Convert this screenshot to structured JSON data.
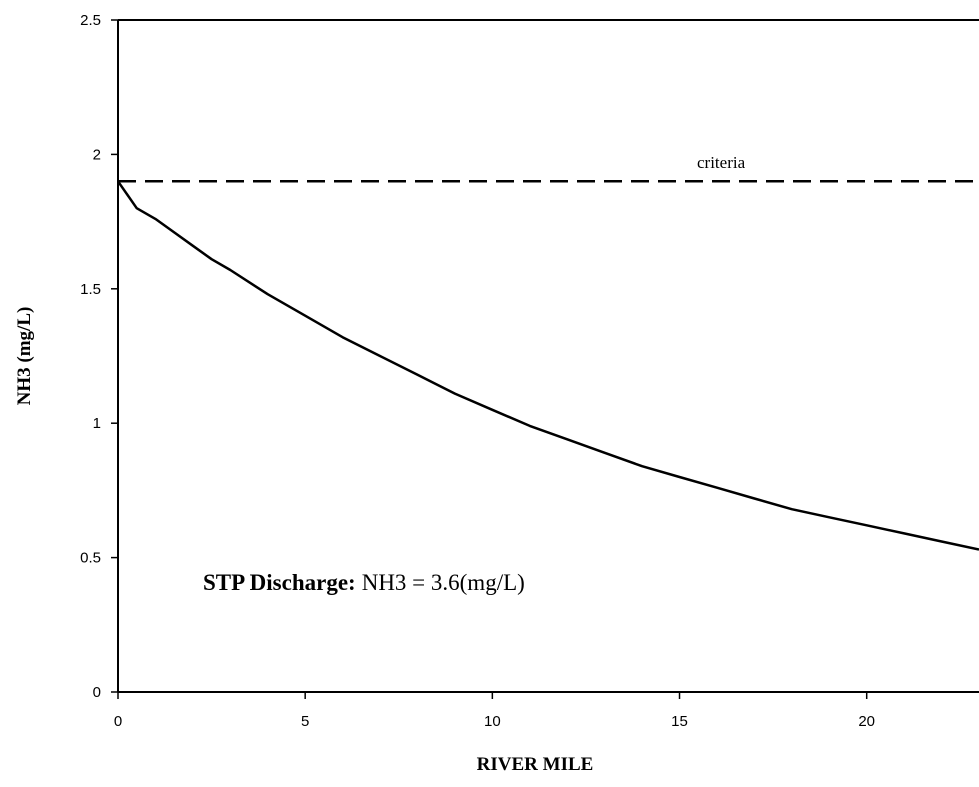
{
  "chart_data": {
    "type": "line",
    "xlabel": "RIVER MILE",
    "ylabel": "NH3 (mg/L)",
    "xlim": [
      0,
      23
    ],
    "ylim": [
      0,
      2.5
    ],
    "x_ticks": [
      "0",
      "5",
      "10",
      "15",
      "20"
    ],
    "y_ticks": [
      "0",
      "0.5",
      "1",
      "1.5",
      "2",
      "2.5"
    ],
    "x_tick_values": [
      0,
      5,
      10,
      15,
      20
    ],
    "y_tick_values": [
      0,
      0.5,
      1,
      1.5,
      2,
      2.5
    ],
    "grid": false,
    "series": [
      {
        "style": "solid",
        "x": [
          0,
          0.5,
          1,
          1.5,
          2,
          2.5,
          3,
          4,
          5,
          6,
          7,
          8,
          9,
          10,
          11,
          12,
          13,
          14,
          15,
          16,
          17,
          18,
          19,
          20,
          21,
          22,
          23
        ],
        "y": [
          1.9,
          1.8,
          1.76,
          1.71,
          1.66,
          1.61,
          1.57,
          1.48,
          1.4,
          1.32,
          1.25,
          1.18,
          1.11,
          1.05,
          0.99,
          0.94,
          0.89,
          0.84,
          0.8,
          0.76,
          0.72,
          0.68,
          0.65,
          0.62,
          0.59,
          0.56,
          0.53
        ]
      },
      {
        "style": "dashed",
        "x": [
          0,
          23
        ],
        "y": [
          1.9,
          1.9
        ]
      }
    ],
    "annotations": {
      "criteria_label": "criteria",
      "discharge_bold": "STP Discharge:",
      "discharge_value": "NH3 = 3.6(mg/L)"
    }
  }
}
